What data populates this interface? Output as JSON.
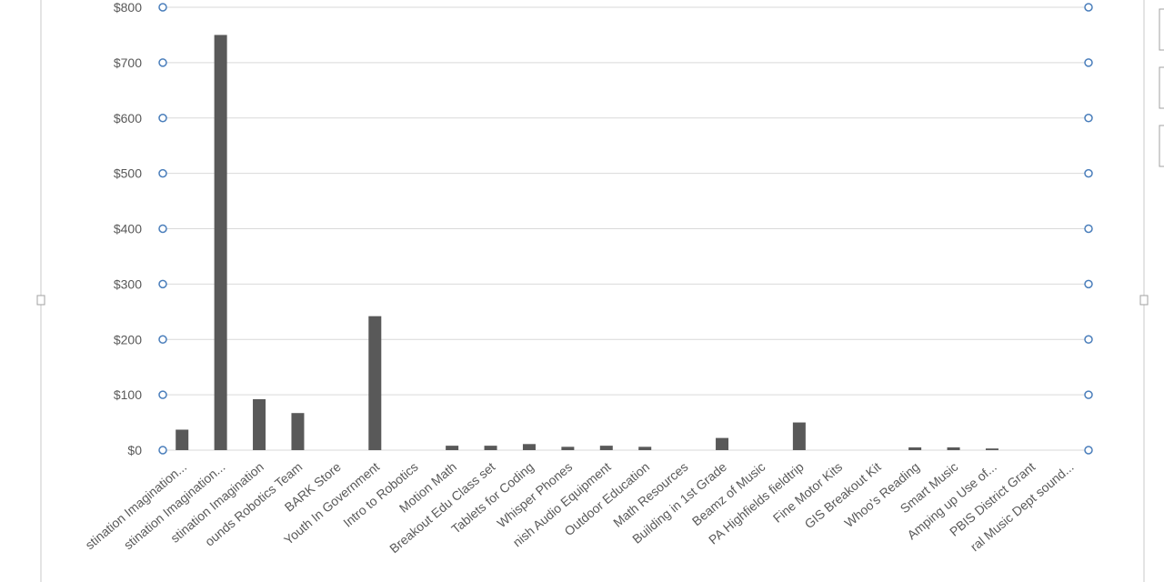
{
  "chart_data": {
    "type": "bar",
    "color": "#595959",
    "categories": [
      "stination Imagination...",
      "stination Imagination...",
      "stination Imagination",
      "ounds Robotics Team",
      "BARK Store",
      "Youth In Government",
      "Intro to Robotics",
      "Motion Math",
      "Breakout Edu Class set",
      "Tablets for Coding",
      "Whisper Phones",
      "nish Audio Equipment",
      "Outdoor Education",
      "Math Resources",
      "Building in 1st Grade",
      "Beamz of Music",
      "PA Highfields fieldtrip",
      "Fine Motor Kits",
      "GIS Breakout Kit",
      "Whoo's Reading",
      "Smart Music",
      "Amping up Use of...",
      "PBIS District Grant",
      "ral Music Dept sound..."
    ],
    "values": [
      37,
      750,
      92,
      67,
      0,
      242,
      0,
      8,
      8,
      11,
      6,
      8,
      6,
      0,
      22,
      0,
      50,
      0,
      0,
      5,
      5,
      3,
      0,
      0
    ],
    "ylim": [
      0,
      800
    ],
    "yticks": [
      {
        "value": 0,
        "label": "$0"
      },
      {
        "value": 100,
        "label": "$100"
      },
      {
        "value": 200,
        "label": "$200"
      },
      {
        "value": 300,
        "label": "$300"
      },
      {
        "value": 400,
        "label": "$400"
      },
      {
        "value": 500,
        "label": "$500"
      },
      {
        "value": 600,
        "label": "$600"
      },
      {
        "value": 700,
        "label": "$700"
      },
      {
        "value": 800,
        "label": "$800"
      }
    ],
    "grid": true
  }
}
